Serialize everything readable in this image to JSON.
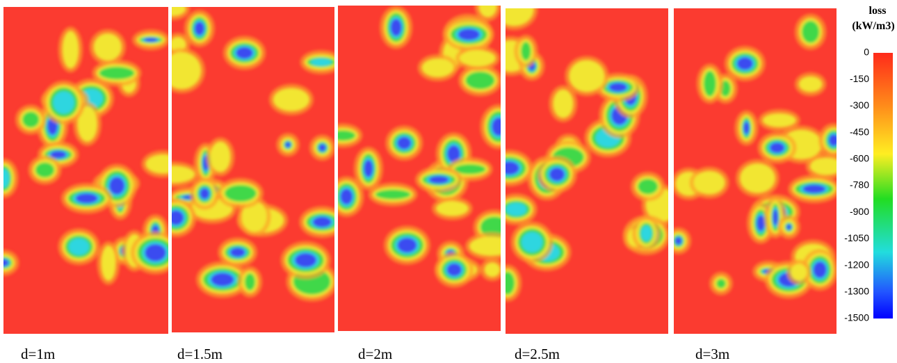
{
  "panels": [
    {
      "label": "d=1m"
    },
    {
      "label": "d=1.5m"
    },
    {
      "label": "d=2m"
    },
    {
      "label": "d=2.5m"
    },
    {
      "label": "d=3m"
    }
  ],
  "colorbar": {
    "title": [
      "loss",
      "(kW/m3)"
    ],
    "ticks": [
      "0",
      "-150",
      "-300",
      "-450",
      "-600",
      "-780",
      "-900",
      "-1050",
      "-1200",
      "-1300",
      "-1500"
    ]
  }
}
